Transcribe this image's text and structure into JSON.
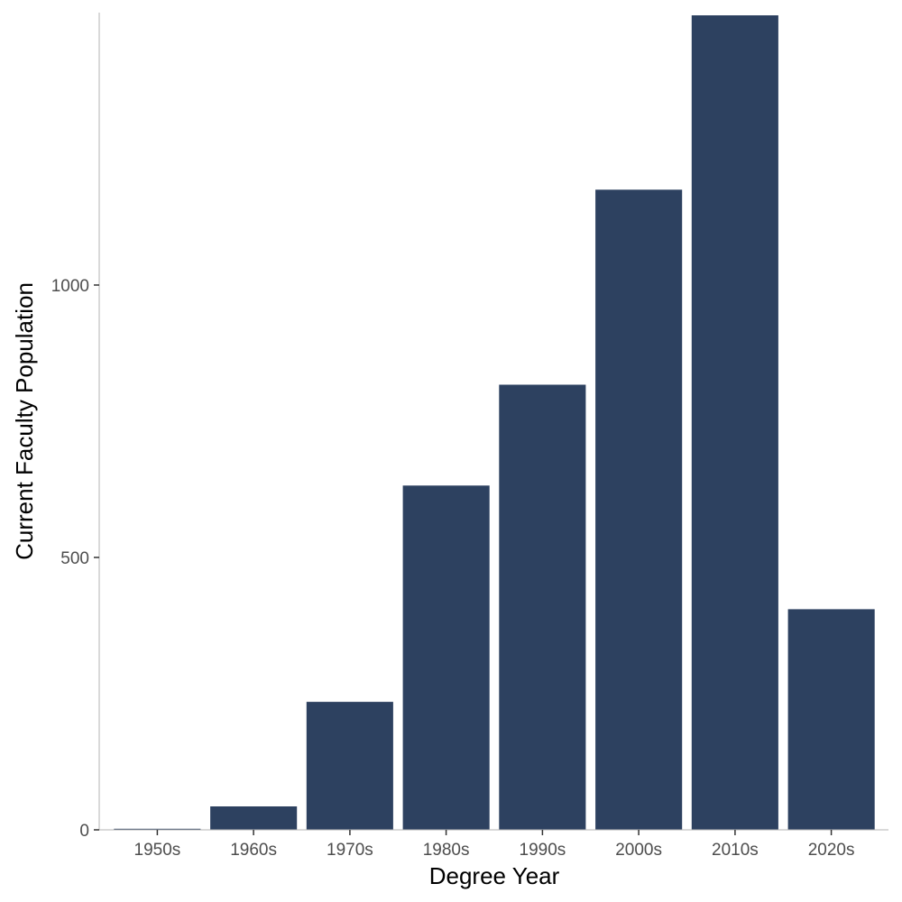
{
  "chart_data": {
    "type": "bar",
    "title": "",
    "xlabel": "Degree Year",
    "ylabel": "Current Faculty Population",
    "categories": [
      "1950s",
      "1960s",
      "1970s",
      "1980s",
      "1990s",
      "2000s",
      "2010s",
      "2020s"
    ],
    "values": [
      2,
      43,
      235,
      632,
      817,
      1175,
      1495,
      405
    ],
    "ylim": [
      0,
      1500
    ],
    "yticks": [
      0,
      500,
      1000
    ],
    "grid": false,
    "legend": "none",
    "colors": {
      "bar": "#2d4160"
    }
  }
}
